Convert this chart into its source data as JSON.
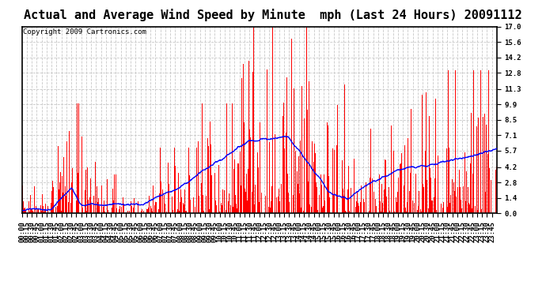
{
  "title": "Actual and Average Wind Speed by Minute  mph (Last 24 Hours) 20091112",
  "copyright": "Copyright 2009 Cartronics.com",
  "yticks": [
    0.0,
    1.4,
    2.8,
    4.2,
    5.7,
    7.1,
    8.5,
    9.9,
    11.3,
    12.8,
    14.2,
    15.6,
    17.0
  ],
  "ymax": 17.0,
  "ymin": 0.0,
  "bar_color": "#ff0000",
  "line_color": "#0000ff",
  "background_color": "#ffffff",
  "grid_color": "#c8c8c8",
  "title_fontsize": 11,
  "copyright_fontsize": 6.5,
  "tick_fontsize": 6.5
}
